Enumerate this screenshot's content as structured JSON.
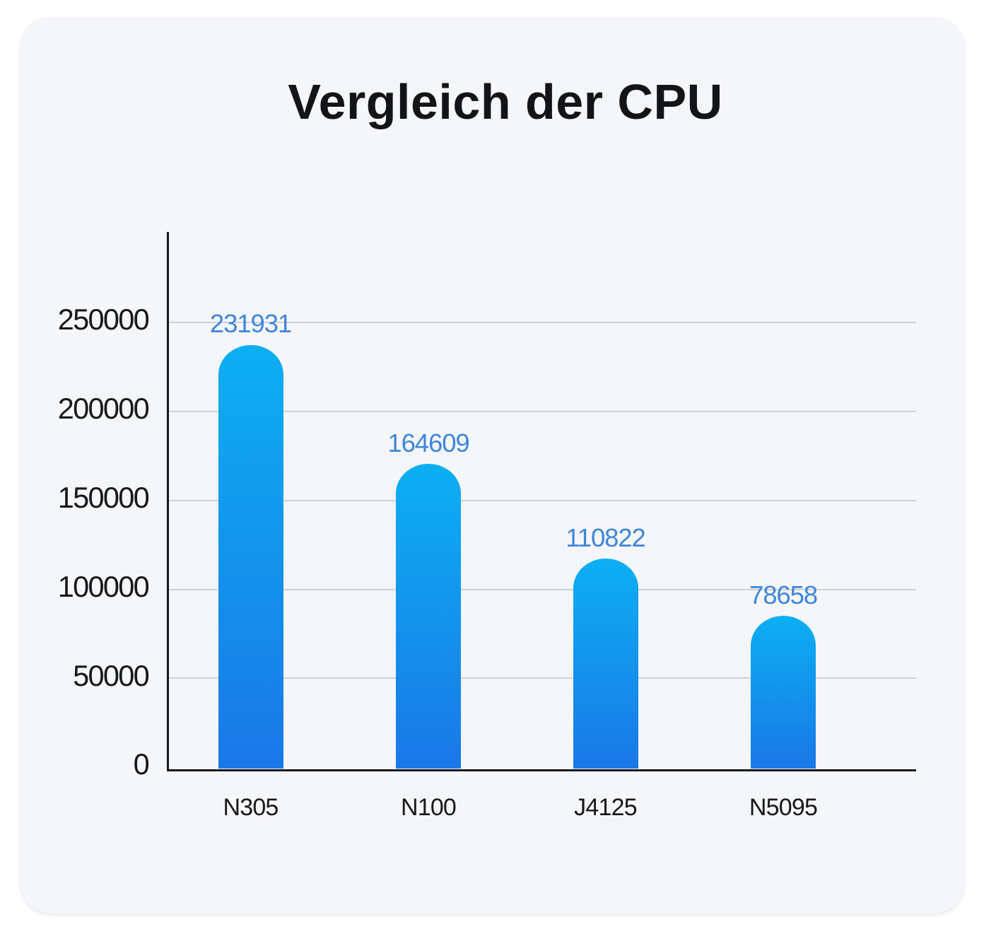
{
  "page": {
    "background": "#ffffff"
  },
  "card": {
    "background": "#f5f6fa"
  },
  "chart_data": {
    "type": "bar",
    "title": "Vergleich der CPU",
    "categories": [
      "N305",
      "N100",
      "J4125",
      "N5095"
    ],
    "values": [
      231931,
      164609,
      110822,
      78658
    ],
    "value_labels": [
      "231931",
      "164609",
      "110822",
      "78658"
    ],
    "xlabel": "",
    "ylabel": "",
    "ylim": [
      0,
      300000
    ],
    "yticks": [
      0,
      50000,
      100000,
      150000,
      200000,
      250000
    ],
    "ytick_labels": [
      "0",
      "50000",
      "100000",
      "150000",
      "200000",
      "250000"
    ],
    "grid": "horizontal",
    "legend": "none",
    "colors": {
      "bar_gradient_top": "#0caff2",
      "bar_gradient_bottom": "#1a78e7",
      "value_label": "#3e86d9",
      "axis": "#17181c",
      "tick_label": "#17181c",
      "gridline": "#cfd1d7",
      "title": "#131418"
    }
  }
}
